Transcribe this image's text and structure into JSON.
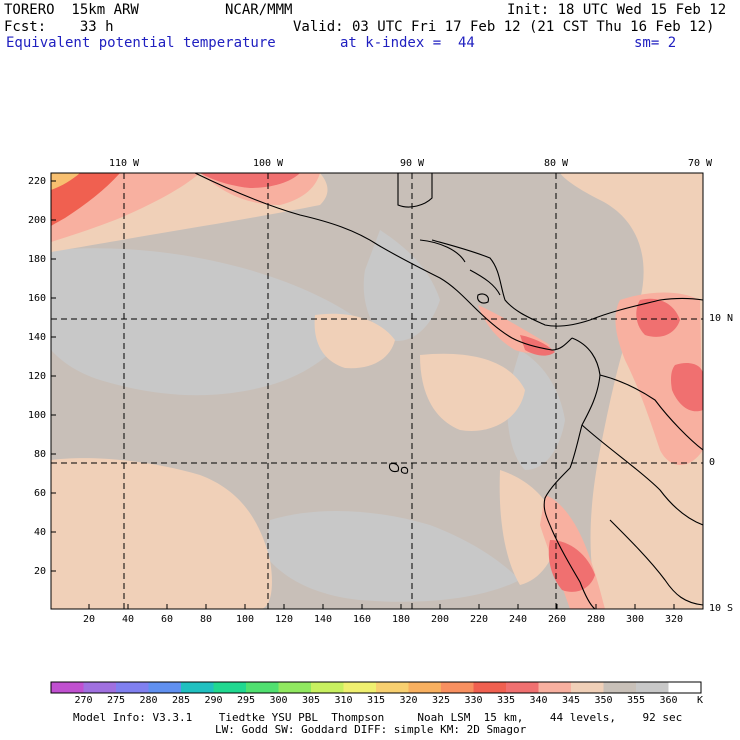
{
  "header": {
    "model": "TORERO  15km ARW",
    "org": "NCAR/MMM",
    "init": "Init: 18 UTC Wed 15 Feb 12",
    "fcst": "Fcst:    33 h",
    "valid": "Valid: 03 UTC Fri 17 Feb 12 (21 CST Thu 16 Feb 12)",
    "field": "Equivalent potential temperature",
    "level": "at k-index =  44",
    "smooth": "sm= 2"
  },
  "axes": {
    "left_ticks": [
      "220",
      "200",
      "180",
      "160",
      "140",
      "120",
      "100",
      "80",
      "60",
      "40",
      "20"
    ],
    "bottom_ticks": [
      "20",
      "40",
      "60",
      "80",
      "100",
      "120",
      "140",
      "160",
      "180",
      "200",
      "220",
      "240",
      "260",
      "280",
      "300",
      "320"
    ],
    "top_ticks": [
      "110 W",
      "100 W",
      "90 W",
      "80 W",
      "70 W"
    ],
    "right_ticks": [
      "10 N",
      "0",
      "10 S"
    ]
  },
  "colorbar": {
    "labels": [
      "270",
      "275",
      "280",
      "285",
      "290",
      "295",
      "300",
      "305",
      "310",
      "315",
      "320",
      "325",
      "330",
      "335",
      "340",
      "345",
      "350",
      "355",
      "360"
    ],
    "unit": "K",
    "colors": [
      "#c050d0",
      "#a070e0",
      "#8080f0",
      "#6090f0",
      "#20c0c0",
      "#20d890",
      "#50e070",
      "#90e860",
      "#c8f060",
      "#f0f070",
      "#f8d070",
      "#f8b060",
      "#f89060",
      "#f06050",
      "#f07070",
      "#f8b0a0",
      "#f0d0b8",
      "#c8c0b8",
      "#c8c8c8",
      "#ffffff"
    ]
  },
  "map_colors": {
    "base": "#c8bfb8",
    "cool": "#c8c8c8",
    "warm": "#f0d0b8",
    "pink": "#f8b0a0",
    "red": "#f07070",
    "hot": "#f06050",
    "coast": "#000000"
  },
  "footer": {
    "line1": "Model Info: V3.3.1    Tiedtke YSU PBL  Thompson     Noah LSM  15 km,    44 levels,    92 sec",
    "line2": "LW: Godd SW: Goddard DIFF: simple KM: 2D Smagor"
  }
}
